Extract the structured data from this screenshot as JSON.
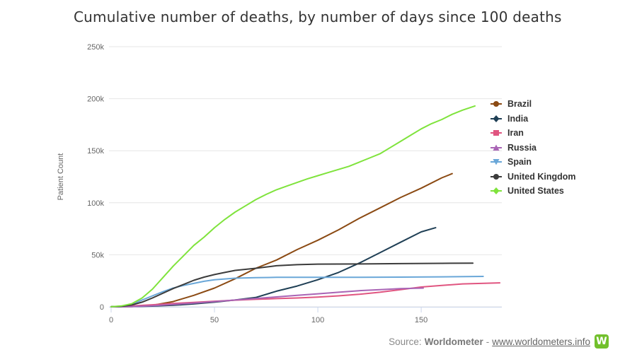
{
  "chart_data": {
    "type": "line",
    "title": "Cumulative number of deaths, by number of days since 100 deaths",
    "xlabel": "",
    "ylabel": "Patient Count",
    "xlim": [
      0,
      189
    ],
    "ylim": [
      0,
      250000
    ],
    "x_ticks": [
      0,
      50,
      100,
      150
    ],
    "x_tick_labels": [
      "0",
      "50",
      "100",
      "150"
    ],
    "y_ticks": [
      0,
      50000,
      100000,
      150000,
      200000,
      250000
    ],
    "y_tick_labels": [
      "0",
      "50k",
      "100k",
      "150k",
      "200k",
      "250k"
    ],
    "grid": true,
    "legend_position": "right",
    "series": [
      {
        "name": "Brazil",
        "color": "#8b4a13",
        "marker": "circle",
        "points": [
          [
            0,
            100
          ],
          [
            10,
            300
          ],
          [
            20,
            1500
          ],
          [
            30,
            5000
          ],
          [
            40,
            11000
          ],
          [
            50,
            18000
          ],
          [
            60,
            27000
          ],
          [
            70,
            37000
          ],
          [
            80,
            45000
          ],
          [
            90,
            55000
          ],
          [
            100,
            64000
          ],
          [
            110,
            74000
          ],
          [
            120,
            85000
          ],
          [
            130,
            95000
          ],
          [
            140,
            105000
          ],
          [
            150,
            114000
          ],
          [
            160,
            124000
          ],
          [
            165,
            128000
          ]
        ]
      },
      {
        "name": "India",
        "color": "#1f3f55",
        "marker": "diamond",
        "points": [
          [
            0,
            100
          ],
          [
            10,
            300
          ],
          [
            20,
            700
          ],
          [
            30,
            1500
          ],
          [
            40,
            2800
          ],
          [
            50,
            4500
          ],
          [
            60,
            6500
          ],
          [
            70,
            9000
          ],
          [
            80,
            15000
          ],
          [
            90,
            20000
          ],
          [
            100,
            26000
          ],
          [
            110,
            33000
          ],
          [
            120,
            42000
          ],
          [
            130,
            52000
          ],
          [
            140,
            62000
          ],
          [
            150,
            72000
          ],
          [
            157,
            76000
          ]
        ]
      },
      {
        "name": "Iran",
        "color": "#e05580",
        "marker": "square",
        "points": [
          [
            0,
            100
          ],
          [
            10,
            800
          ],
          [
            20,
            2000
          ],
          [
            30,
            3200
          ],
          [
            40,
            4300
          ],
          [
            50,
            5400
          ],
          [
            60,
            6400
          ],
          [
            70,
            7200
          ],
          [
            80,
            7900
          ],
          [
            90,
            8500
          ],
          [
            100,
            9300
          ],
          [
            110,
            10500
          ],
          [
            120,
            12000
          ],
          [
            130,
            14000
          ],
          [
            140,
            16500
          ],
          [
            150,
            19000
          ],
          [
            160,
            20500
          ],
          [
            170,
            22000
          ],
          [
            188,
            23000
          ]
        ]
      },
      {
        "name": "Russia",
        "color": "#a964b5",
        "marker": "triangle",
        "points": [
          [
            0,
            100
          ],
          [
            10,
            300
          ],
          [
            20,
            1000
          ],
          [
            30,
            2300
          ],
          [
            40,
            3500
          ],
          [
            50,
            5000
          ],
          [
            60,
            6500
          ],
          [
            70,
            8000
          ],
          [
            80,
            9500
          ],
          [
            90,
            11000
          ],
          [
            100,
            12500
          ],
          [
            110,
            14000
          ],
          [
            120,
            15500
          ],
          [
            130,
            16500
          ],
          [
            140,
            17500
          ],
          [
            151,
            18000
          ]
        ]
      },
      {
        "name": "Spain",
        "color": "#6aa7d8",
        "marker": "triangle-down",
        "points": [
          [
            0,
            100
          ],
          [
            5,
            600
          ],
          [
            10,
            2500
          ],
          [
            15,
            6500
          ],
          [
            20,
            10500
          ],
          [
            25,
            14500
          ],
          [
            30,
            18000
          ],
          [
            35,
            20500
          ],
          [
            40,
            22500
          ],
          [
            45,
            24500
          ],
          [
            50,
            26000
          ],
          [
            60,
            27500
          ],
          [
            70,
            28000
          ],
          [
            80,
            28300
          ],
          [
            100,
            28400
          ],
          [
            120,
            28400
          ],
          [
            140,
            28500
          ],
          [
            160,
            28800
          ],
          [
            180,
            29200
          ]
        ]
      },
      {
        "name": "United Kingdom",
        "color": "#3c3c3c",
        "marker": "circle",
        "points": [
          [
            0,
            100
          ],
          [
            5,
            500
          ],
          [
            10,
            1800
          ],
          [
            15,
            4500
          ],
          [
            20,
            8500
          ],
          [
            25,
            13000
          ],
          [
            30,
            17500
          ],
          [
            35,
            21500
          ],
          [
            40,
            25500
          ],
          [
            45,
            28500
          ],
          [
            50,
            31000
          ],
          [
            55,
            33000
          ],
          [
            60,
            35000
          ],
          [
            70,
            37000
          ],
          [
            80,
            39500
          ],
          [
            90,
            40500
          ],
          [
            100,
            41000
          ],
          [
            120,
            41200
          ],
          [
            140,
            41500
          ],
          [
            160,
            41800
          ],
          [
            175,
            42000
          ]
        ]
      },
      {
        "name": "United States",
        "color": "#7fe33c",
        "marker": "diamond",
        "points": [
          [
            0,
            100
          ],
          [
            5,
            800
          ],
          [
            10,
            3000
          ],
          [
            15,
            8500
          ],
          [
            20,
            17000
          ],
          [
            25,
            28000
          ],
          [
            30,
            39000
          ],
          [
            35,
            49000
          ],
          [
            40,
            59000
          ],
          [
            45,
            67000
          ],
          [
            50,
            76000
          ],
          [
            55,
            84000
          ],
          [
            60,
            91000
          ],
          [
            65,
            97000
          ],
          [
            70,
            103000
          ],
          [
            75,
            108000
          ],
          [
            80,
            112500
          ],
          [
            85,
            116000
          ],
          [
            90,
            119500
          ],
          [
            95,
            123000
          ],
          [
            100,
            126000
          ],
          [
            105,
            129000
          ],
          [
            110,
            132000
          ],
          [
            115,
            135000
          ],
          [
            120,
            139000
          ],
          [
            125,
            143000
          ],
          [
            130,
            147000
          ],
          [
            135,
            153000
          ],
          [
            140,
            159000
          ],
          [
            145,
            165000
          ],
          [
            150,
            171000
          ],
          [
            155,
            176000
          ],
          [
            160,
            180000
          ],
          [
            165,
            185000
          ],
          [
            170,
            189000
          ],
          [
            176,
            193000
          ]
        ]
      }
    ]
  },
  "source": {
    "label": "Source:",
    "name": "Worldometer",
    "sep": "-",
    "link": "www.worldometers.info",
    "logo_letter": "W"
  }
}
